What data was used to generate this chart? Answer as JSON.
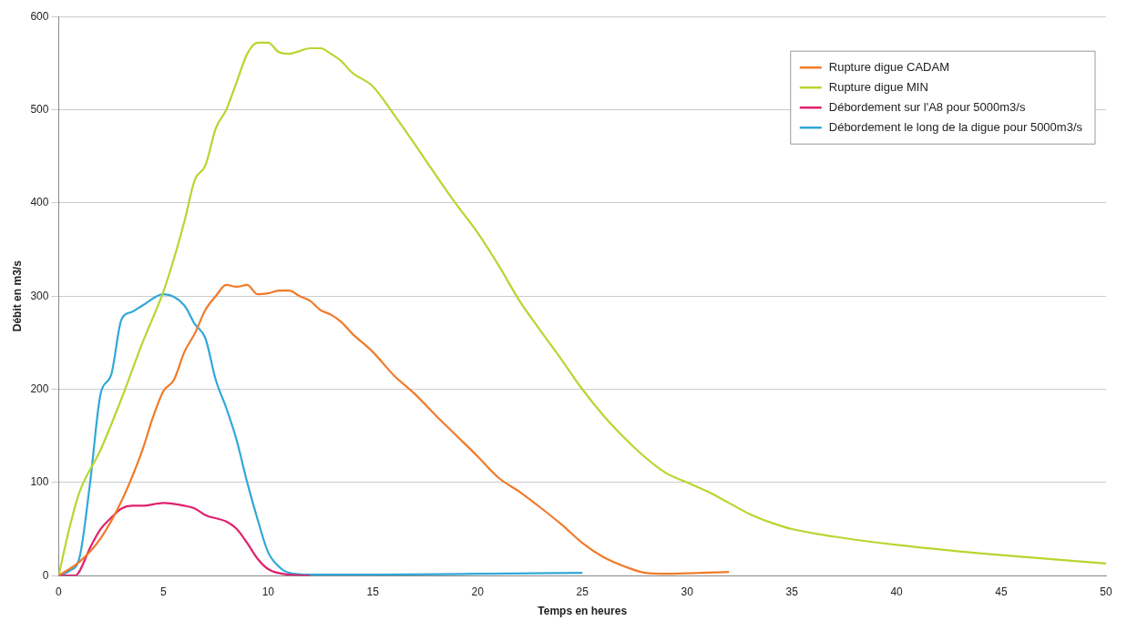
{
  "chart_data": {
    "type": "line",
    "xlabel": "Temps en heures",
    "ylabel": "Débit en m3/s",
    "xlim": [
      0,
      50
    ],
    "xticks": [
      0,
      5,
      10,
      15,
      20,
      25,
      30,
      35,
      40,
      45,
      50
    ],
    "ylim": [
      0,
      600
    ],
    "yticks": [
      0,
      100,
      200,
      300,
      400,
      500,
      600
    ],
    "grid": "y",
    "legend": "top right",
    "marker": "none",
    "line_style": "solid",
    "series": [
      {
        "name": "Rupture digue CADAM",
        "color": "#f07a2a",
        "x": [
          0,
          1,
          2,
          3,
          4,
          4.5,
          5,
          5.5,
          6,
          6.5,
          7,
          7.5,
          8,
          8.5,
          9,
          9.5,
          10,
          10.5,
          11,
          11.5,
          12,
          12.5,
          13,
          13.5,
          14,
          15,
          16,
          17,
          18,
          19,
          20,
          21,
          22,
          23,
          24,
          25,
          26,
          27,
          28,
          29,
          32
        ],
        "values": [
          0,
          15,
          40,
          80,
          135,
          170,
          198,
          210,
          240,
          260,
          285,
          300,
          312,
          310,
          312,
          302,
          303,
          306,
          306,
          300,
          295,
          285,
          280,
          272,
          260,
          240,
          215,
          195,
          172,
          150,
          128,
          105,
          90,
          73,
          55,
          35,
          20,
          10,
          3,
          2,
          4
        ]
      },
      {
        "name": "Rupture digue MIN",
        "color": "#b7d630",
        "x": [
          0,
          0.5,
          1,
          2,
          3,
          4,
          5,
          5.5,
          6,
          6.5,
          7,
          7.5,
          8,
          8.5,
          9,
          9.5,
          10,
          10.5,
          11,
          11.5,
          12,
          12.5,
          13,
          13.5,
          14,
          15,
          16,
          17,
          18,
          19,
          20,
          21,
          22,
          23,
          24,
          25,
          26,
          27,
          28,
          29,
          30,
          31,
          32,
          33,
          34,
          35,
          37,
          40,
          45,
          50
        ],
        "values": [
          0,
          50,
          90,
          135,
          190,
          250,
          305,
          340,
          380,
          425,
          440,
          480,
          500,
          530,
          560,
          572,
          572,
          562,
          560,
          563,
          566,
          566,
          560,
          552,
          540,
          525,
          495,
          463,
          430,
          398,
          368,
          333,
          295,
          263,
          232,
          200,
          172,
          148,
          127,
          110,
          100,
          90,
          78,
          66,
          57,
          50,
          42,
          33,
          22,
          13
        ]
      },
      {
        "name": "Débordement sur l'A8 pour 5000m3/s",
        "color": "#e0206f",
        "x": [
          0,
          0.8,
          1,
          1.5,
          2,
          2.5,
          3,
          3.5,
          4,
          5,
          6,
          6.5,
          7,
          8,
          8.5,
          9,
          9.5,
          10,
          11,
          12
        ],
        "values": [
          0,
          0,
          5,
          30,
          50,
          62,
          72,
          75,
          75,
          78,
          75,
          72,
          65,
          58,
          50,
          35,
          18,
          7,
          1,
          0
        ]
      },
      {
        "name": "Débordement le long de la digue pour 5000m3/s",
        "color": "#30a8d8",
        "x": [
          0,
          0.5,
          1,
          1.5,
          2,
          2.5,
          3,
          3.5,
          4,
          5,
          6,
          6.5,
          7,
          7.5,
          8,
          8.5,
          9,
          9.5,
          10,
          10.5,
          11,
          12,
          15,
          20,
          25
        ],
        "values": [
          0,
          5,
          20,
          100,
          195,
          215,
          275,
          283,
          290,
          302,
          290,
          270,
          255,
          210,
          180,
          145,
          100,
          60,
          25,
          10,
          3,
          1,
          1,
          2,
          3
        ]
      }
    ]
  }
}
